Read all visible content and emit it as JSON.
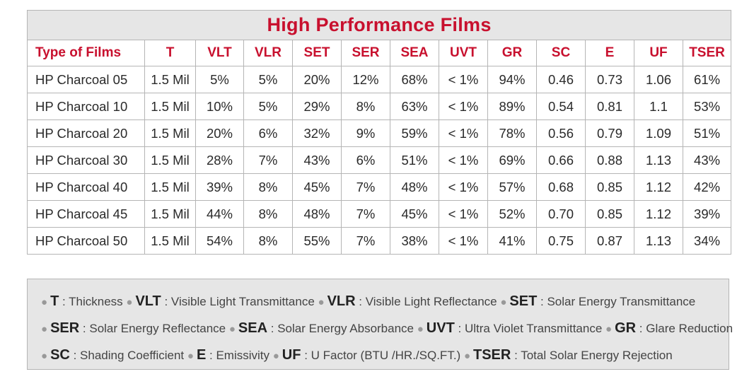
{
  "title": "High Performance Films",
  "columns": [
    "Type of Films",
    "T",
    "VLT",
    "VLR",
    "SET",
    "SER",
    "SEA",
    "UVT",
    "GR",
    "SC",
    "E",
    "UF",
    "TSER"
  ],
  "rows": [
    [
      "HP Charcoal 05",
      "1.5 Mil",
      "5%",
      "5%",
      "20%",
      "12%",
      "68%",
      "< 1%",
      "94%",
      "0.46",
      "0.73",
      "1.06",
      "61%"
    ],
    [
      "HP Charcoal 10",
      "1.5 Mil",
      "10%",
      "5%",
      "29%",
      "8%",
      "63%",
      "< 1%",
      "89%",
      "0.54",
      "0.81",
      "1.1",
      "53%"
    ],
    [
      "HP Charcoal 20",
      "1.5 Mil",
      "20%",
      "6%",
      "32%",
      "9%",
      "59%",
      "< 1%",
      "78%",
      "0.56",
      "0.79",
      "1.09",
      "51%"
    ],
    [
      "HP Charcoal 30",
      "1.5 Mil",
      "28%",
      "7%",
      "43%",
      "6%",
      "51%",
      "< 1%",
      "69%",
      "0.66",
      "0.88",
      "1.13",
      "43%"
    ],
    [
      "HP Charcoal 40",
      "1.5 Mil",
      "39%",
      "8%",
      "45%",
      "7%",
      "48%",
      "< 1%",
      "57%",
      "0.68",
      "0.85",
      "1.12",
      "42%"
    ],
    [
      "HP Charcoal 45",
      "1.5 Mil",
      "44%",
      "8%",
      "48%",
      "7%",
      "45%",
      "< 1%",
      "52%",
      "0.70",
      "0.85",
      "1.12",
      "39%"
    ],
    [
      "HP Charcoal 50",
      "1.5 Mil",
      "54%",
      "8%",
      "55%",
      "7%",
      "38%",
      "< 1%",
      "41%",
      "0.75",
      "0.87",
      "1.13",
      "34%"
    ]
  ],
  "legend": [
    [
      {
        "abbr": "T",
        "desc": " : Thickness "
      },
      {
        "abbr": "VLT",
        "desc": " : Visible Light Transmittance "
      },
      {
        "abbr": "VLR",
        "desc": " : Visible Light Reflectance "
      },
      {
        "abbr": "SET",
        "desc": " : Solar Energy Transmittance"
      }
    ],
    [
      {
        "abbr": "SER",
        "desc": " : Solar Energy Reflectance "
      },
      {
        "abbr": "SEA",
        "desc": " : Solar Energy Absorbance "
      },
      {
        "abbr": "UVT",
        "desc": " : Ultra Violet Transmittance "
      },
      {
        "abbr": "GR",
        "desc": " : Glare Reduction"
      }
    ],
    [
      {
        "abbr": "SC",
        "desc": " : Shading Coefficient "
      },
      {
        "abbr": "E",
        "desc": " : Emissivity "
      },
      {
        "abbr": "UF",
        "desc": " : U Factor (BTU /HR./SQ.FT.) "
      },
      {
        "abbr": "TSER",
        "desc": " : Total Solar Energy Rejection"
      }
    ]
  ],
  "colors": {
    "accent": "#c8102e",
    "header_bg": "#e6e6e6",
    "border": "#b5b5b5",
    "bullet": "#999999"
  }
}
